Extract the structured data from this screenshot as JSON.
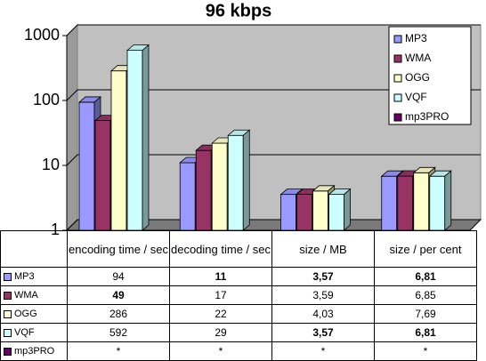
{
  "chart_data": {
    "type": "bar3d",
    "title": "96 kbps",
    "categories": [
      "encoding time / sec",
      "decoding time / sec",
      "size / MB",
      "size / per cent"
    ],
    "series": [
      {
        "name": "MP3",
        "color": "#9999ff",
        "values": [
          94,
          11,
          3.57,
          6.81
        ],
        "value_labels": [
          "94",
          "11",
          "3,57",
          "6,81"
        ],
        "bold": [
          false,
          true,
          true,
          true
        ]
      },
      {
        "name": "WMA",
        "color": "#993366",
        "values": [
          49,
          17,
          3.59,
          6.85
        ],
        "value_labels": [
          "49",
          "17",
          "3,59",
          "6,85"
        ],
        "bold": [
          true,
          false,
          false,
          false
        ]
      },
      {
        "name": "OGG",
        "color": "#ffffcc",
        "values": [
          286,
          22,
          4.03,
          7.69
        ],
        "value_labels": [
          "286",
          "22",
          "4,03",
          "7,69"
        ],
        "bold": [
          false,
          false,
          false,
          false
        ]
      },
      {
        "name": "VQF",
        "color": "#ccffff",
        "values": [
          592,
          29,
          3.57,
          6.81
        ],
        "value_labels": [
          "592",
          "29",
          "3,57",
          "6,81"
        ],
        "bold": [
          false,
          false,
          true,
          true
        ]
      },
      {
        "name": "mp3PRO",
        "color": "#660066",
        "values": [
          null,
          null,
          null,
          null
        ],
        "value_labels": [
          "*",
          "*",
          "*",
          "*"
        ],
        "bold": [
          false,
          false,
          false,
          false
        ]
      }
    ],
    "log_scale": true,
    "ylim": [
      1,
      1000
    ],
    "yticks": [
      1,
      10,
      100,
      1000
    ],
    "grid": true,
    "legend": "top-right"
  }
}
